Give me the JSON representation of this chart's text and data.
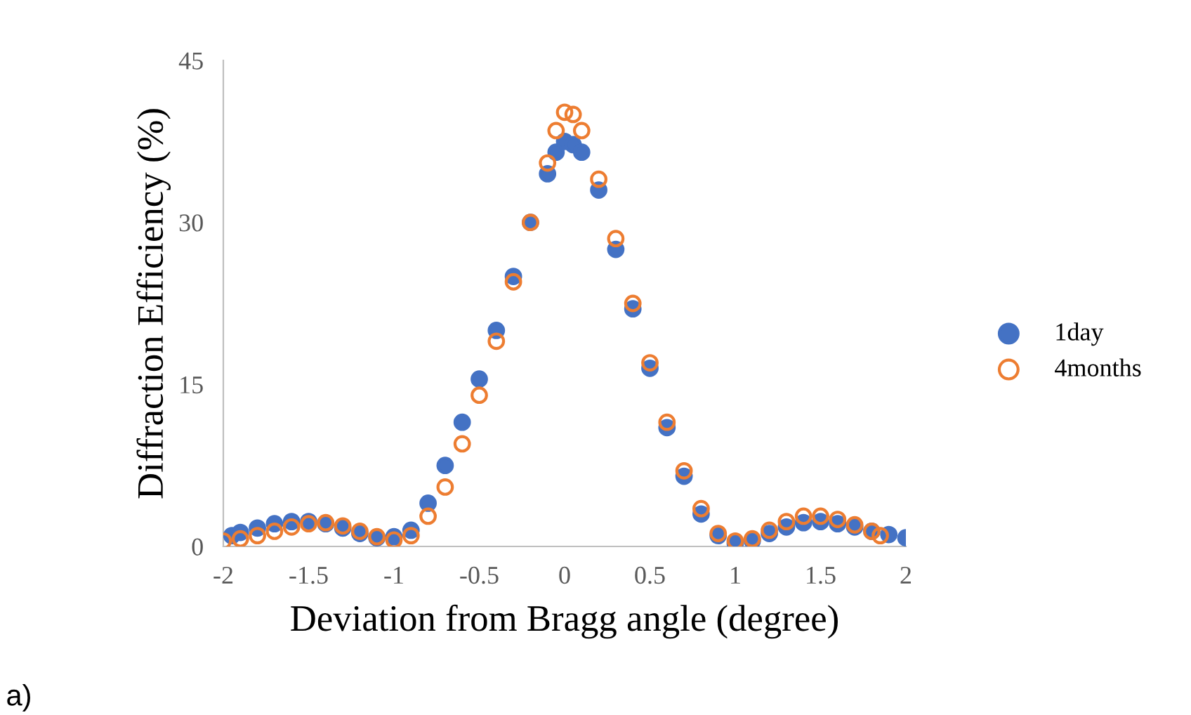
{
  "chart_data": {
    "type": "scatter",
    "xlabel": "Deviation from Bragg angle (degree)",
    "ylabel": "Diffraction Efficiency (%)",
    "annotations": [
      "a)"
    ],
    "xlim": [
      -2,
      2
    ],
    "xticks": [
      -2,
      -1.5,
      -1,
      -0.5,
      0,
      0.5,
      1,
      1.5,
      2
    ],
    "ylim": [
      0,
      45
    ],
    "yticks": [
      0,
      15,
      30,
      45
    ],
    "grid": false,
    "legend": "right",
    "series": [
      {
        "name": "1day",
        "color": "#4472c4",
        "marker": "circle",
        "x": [
          -1.95,
          -1.9,
          -1.8,
          -1.7,
          -1.6,
          -1.5,
          -1.4,
          -1.3,
          -1.2,
          -1.1,
          -1.0,
          -0.9,
          -0.8,
          -0.7,
          -0.6,
          -0.5,
          -0.4,
          -0.3,
          -0.2,
          -0.1,
          -0.05,
          0,
          0.05,
          0.1,
          0.2,
          0.3,
          0.4,
          0.5,
          0.6,
          0.7,
          0.8,
          0.9,
          1.0,
          1.1,
          1.2,
          1.3,
          1.4,
          1.5,
          1.6,
          1.7,
          1.8,
          1.9,
          2.0
        ],
        "values": [
          1.0,
          1.3,
          1.7,
          2.1,
          2.3,
          2.3,
          2.1,
          1.7,
          1.2,
          0.8,
          0.9,
          1.5,
          4,
          7.5,
          11.5,
          15.5,
          20,
          25,
          30,
          34.5,
          36.5,
          37.5,
          37.2,
          36.5,
          33,
          27.5,
          22,
          16.5,
          11,
          6.5,
          3,
          1,
          0.3,
          0.5,
          1.2,
          1.8,
          2.2,
          2.3,
          2.1,
          1.8,
          1.4,
          1.1,
          0.8
        ]
      },
      {
        "name": "4months",
        "color": "#ed7d31",
        "marker": "circle_open",
        "x": [
          -2.0,
          -1.9,
          -1.8,
          -1.7,
          -1.6,
          -1.5,
          -1.4,
          -1.3,
          -1.2,
          -1.1,
          -1.0,
          -0.9,
          -0.8,
          -0.7,
          -0.6,
          -0.5,
          -0.4,
          -0.3,
          -0.2,
          -0.1,
          -0.05,
          0,
          0.05,
          0.1,
          0.2,
          0.3,
          0.4,
          0.5,
          0.6,
          0.7,
          0.8,
          0.9,
          1.0,
          1.1,
          1.2,
          1.3,
          1.4,
          1.5,
          1.6,
          1.7,
          1.8,
          1.85
        ],
        "values": [
          0.5,
          0.7,
          1.0,
          1.4,
          1.8,
          2.1,
          2.2,
          1.9,
          1.4,
          0.9,
          0.6,
          1.0,
          2.8,
          5.5,
          9.5,
          14,
          19,
          24.5,
          30,
          35.5,
          38.5,
          40.2,
          40,
          38.5,
          34,
          28.5,
          22.5,
          17,
          11.5,
          7,
          3.5,
          1.2,
          0.5,
          0.7,
          1.5,
          2.3,
          2.8,
          2.8,
          2.5,
          2.0,
          1.4,
          1.0
        ]
      }
    ]
  }
}
